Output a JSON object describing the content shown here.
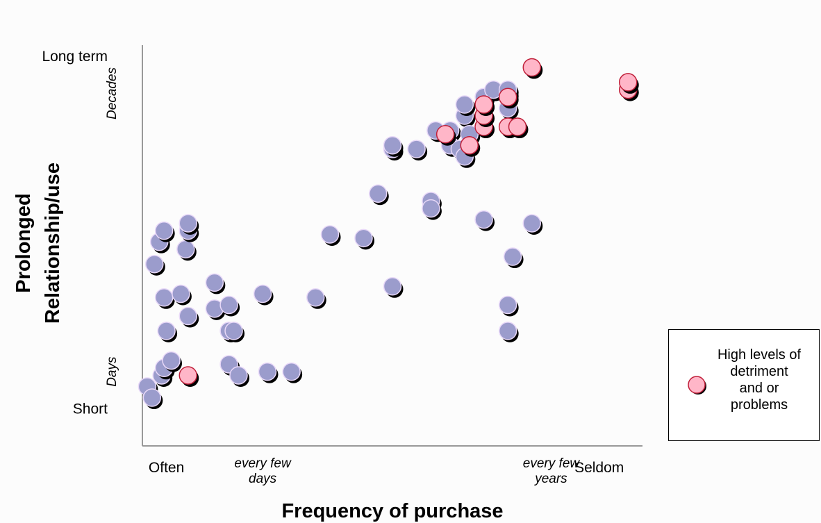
{
  "chart_data": {
    "type": "scatter",
    "xlabel": "Frequency of purchase",
    "ylabel_lines": [
      "Prolonged",
      "Relationship/use"
    ],
    "x_tick_labels": [
      {
        "x": 1,
        "lines": [
          "Often"
        ],
        "italic": false
      },
      {
        "x": 3,
        "lines": [
          "every few",
          "days"
        ],
        "italic": true
      },
      {
        "x": 9,
        "lines": [
          "every few",
          "years"
        ],
        "italic": true
      },
      {
        "x": 10,
        "lines": [
          "Seldom"
        ],
        "italic": false
      }
    ],
    "y_tick_labels": [
      {
        "y": 10,
        "text": "Long term",
        "italic": false,
        "rotated": false
      },
      {
        "y": 9.0,
        "text": "Decades",
        "italic": true,
        "rotated": true
      },
      {
        "y": 1.5,
        "text": "Days",
        "italic": true,
        "rotated": true
      },
      {
        "y": 0.5,
        "text": "Short",
        "italic": false,
        "rotated": false
      }
    ],
    "xlim": [
      0.5,
      10.9
    ],
    "ylim": [
      -0.5,
      10.3
    ],
    "grid": false,
    "legend": {
      "position": "right",
      "entries": [
        "High levels of",
        "detriment",
        "and or",
        "problems"
      ],
      "color": "#ffb6c8",
      "edge": "#c0203a"
    },
    "series": [
      {
        "name": "",
        "color": "#9b9ccc",
        "edge": "#e8d8f8",
        "points": [
          {
            "x": 0.6,
            "y": 1.1
          },
          {
            "x": 0.7,
            "y": 0.8
          },
          {
            "x": 0.9,
            "y": 1.4
          },
          {
            "x": 0.95,
            "y": 1.6
          },
          {
            "x": 1.1,
            "y": 1.8
          },
          {
            "x": 1.0,
            "y": 2.6
          },
          {
            "x": 0.95,
            "y": 3.5
          },
          {
            "x": 0.75,
            "y": 4.4
          },
          {
            "x": 0.85,
            "y": 5.0
          },
          {
            "x": 0.95,
            "y": 5.3
          },
          {
            "x": 1.4,
            "y": 4.8
          },
          {
            "x": 1.45,
            "y": 5.3
          },
          {
            "x": 1.45,
            "y": 5.5
          },
          {
            "x": 1.3,
            "y": 3.6
          },
          {
            "x": 1.45,
            "y": 3.0
          },
          {
            "x": 2.0,
            "y": 3.2
          },
          {
            "x": 2.0,
            "y": 3.9
          },
          {
            "x": 2.3,
            "y": 3.3
          },
          {
            "x": 2.3,
            "y": 2.6
          },
          {
            "x": 2.4,
            "y": 2.6
          },
          {
            "x": 2.3,
            "y": 1.7
          },
          {
            "x": 2.5,
            "y": 1.4
          },
          {
            "x": 3.0,
            "y": 3.6
          },
          {
            "x": 3.1,
            "y": 1.5
          },
          {
            "x": 3.6,
            "y": 1.5
          },
          {
            "x": 4.1,
            "y": 3.5
          },
          {
            "x": 4.4,
            "y": 5.2
          },
          {
            "x": 5.1,
            "y": 5.1
          },
          {
            "x": 5.4,
            "y": 6.3
          },
          {
            "x": 5.7,
            "y": 3.8
          },
          {
            "x": 5.7,
            "y": 7.5
          },
          {
            "x": 5.7,
            "y": 7.6
          },
          {
            "x": 6.2,
            "y": 7.5
          },
          {
            "x": 6.5,
            "y": 6.1
          },
          {
            "x": 6.5,
            "y": 5.9
          },
          {
            "x": 6.6,
            "y": 8.0
          },
          {
            "x": 6.9,
            "y": 8.0
          },
          {
            "x": 6.9,
            "y": 7.6
          },
          {
            "x": 7.1,
            "y": 7.5
          },
          {
            "x": 7.2,
            "y": 7.3
          },
          {
            "x": 7.2,
            "y": 8.4
          },
          {
            "x": 7.2,
            "y": 8.7
          },
          {
            "x": 7.3,
            "y": 7.9
          },
          {
            "x": 7.6,
            "y": 8.7
          },
          {
            "x": 7.6,
            "y": 8.9
          },
          {
            "x": 7.8,
            "y": 9.1
          },
          {
            "x": 8.1,
            "y": 9.0
          },
          {
            "x": 8.1,
            "y": 9.1
          },
          {
            "x": 8.1,
            "y": 8.6
          },
          {
            "x": 7.6,
            "y": 5.6
          },
          {
            "x": 8.6,
            "y": 5.5
          },
          {
            "x": 8.2,
            "y": 4.6
          },
          {
            "x": 8.1,
            "y": 3.3
          },
          {
            "x": 8.1,
            "y": 2.6
          }
        ]
      },
      {
        "name": "High levels of detriment and or problems",
        "color": "#ffb6c8",
        "edge": "#c0203a",
        "points": [
          {
            "x": 1.45,
            "y": 1.4
          },
          {
            "x": 6.8,
            "y": 7.9
          },
          {
            "x": 7.3,
            "y": 7.6
          },
          {
            "x": 7.6,
            "y": 8.1
          },
          {
            "x": 7.6,
            "y": 8.4
          },
          {
            "x": 7.6,
            "y": 8.7
          },
          {
            "x": 8.1,
            "y": 8.9
          },
          {
            "x": 8.1,
            "y": 8.1
          },
          {
            "x": 8.3,
            "y": 8.1
          },
          {
            "x": 8.6,
            "y": 9.7
          },
          {
            "x": 10.6,
            "y": 9.1
          },
          {
            "x": 10.6,
            "y": 9.3
          }
        ]
      }
    ]
  }
}
